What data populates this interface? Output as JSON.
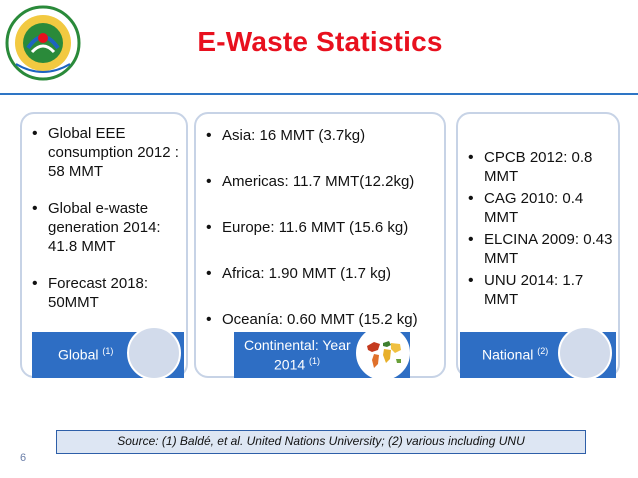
{
  "title": "E-Waste Statistics",
  "logo": {
    "icon": "ministry-seal-logo"
  },
  "columns": [
    {
      "items": [
        "Global EEE consumption 2012 : 58 MMT",
        "Global e-waste generation 2014: 41.8 MMT",
        "Forecast 2018: 50MMT"
      ],
      "label": "Global",
      "label_sup": "(1)"
    },
    {
      "items": [
        "Asia: 16 MMT (3.7kg)",
        "Americas: 11.7 MMT(12.2kg)",
        "Europe: 11.6 MMT (15.6 kg)",
        "Africa: 1.90 MMT (1.7 kg)",
        "Oceanía: 0.60 MMT (15.2 kg)"
      ],
      "label_line1": "Continental: Year",
      "label_line2": "2014",
      "label_sup": "(1)",
      "thumbnail_icon": "world-map-icon"
    },
    {
      "items": [
        "CPCB 2012: 0.8 MMT",
        "CAG 2010: 0.4 MMT",
        "ELCINA 2009: 0.43 MMT",
        "UNU 2014: 1.7 MMT"
      ],
      "label": "National",
      "label_sup": "(2)"
    }
  ],
  "source": "Source: (1) Baldé, et al. United Nations University; (2) various including UNU",
  "page_number": "6",
  "colors": {
    "title": "#e8101e",
    "accent_blue": "#2e6ec4",
    "card_border": "#c7d3e6",
    "circle_fill": "#d2dbeb"
  }
}
